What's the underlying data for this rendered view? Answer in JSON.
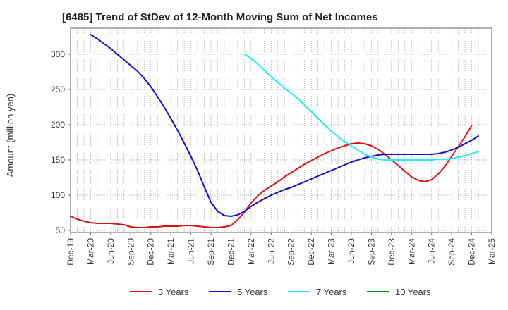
{
  "chart_data": {
    "type": "line",
    "title": "[6485]  Trend of StDev of 12-Month Moving Sum of Net Incomes",
    "ylabel": "Amount (million yen)",
    "xlabel": "",
    "ylim": [
      47,
      337
    ],
    "yticks": [
      50,
      100,
      150,
      200,
      250,
      300
    ],
    "x_ticks": [
      "Dec-19",
      "Mar-20",
      "Jun-20",
      "Sep-20",
      "Dec-20",
      "Mar-21",
      "Jun-21",
      "Sep-21",
      "Dec-21",
      "Mar-22",
      "Jun-22",
      "Sep-22",
      "Dec-22",
      "Mar-23",
      "Jun-23",
      "Sep-23",
      "Dec-23",
      "Mar-24",
      "Jun-24",
      "Sep-24",
      "Dec-24",
      "Mar-25"
    ],
    "grid": true,
    "legend_position": "bottom",
    "series": [
      {
        "name": "3 Years",
        "color": "#dd1111",
        "points": [
          [
            "Dec-19",
            70
          ],
          [
            "Jan-20",
            66
          ],
          [
            "Feb-20",
            63
          ],
          [
            "Mar-20",
            61
          ],
          [
            "Apr-20",
            60
          ],
          [
            "May-20",
            60
          ],
          [
            "Jun-20",
            60
          ],
          [
            "Jul-20",
            59
          ],
          [
            "Aug-20",
            58
          ],
          [
            "Sep-20",
            55
          ],
          [
            "Oct-20",
            54
          ],
          [
            "Nov-20",
            54
          ],
          [
            "Dec-20",
            55
          ],
          [
            "Jan-21",
            55
          ],
          [
            "Feb-21",
            56
          ],
          [
            "Mar-21",
            56
          ],
          [
            "Apr-21",
            56
          ],
          [
            "May-21",
            57
          ],
          [
            "Jun-21",
            57
          ],
          [
            "Jul-21",
            56
          ],
          [
            "Aug-21",
            55
          ],
          [
            "Sep-21",
            54
          ],
          [
            "Oct-21",
            54
          ],
          [
            "Nov-21",
            55
          ],
          [
            "Dec-21",
            57
          ],
          [
            "Jan-22",
            65
          ],
          [
            "Feb-22",
            76
          ],
          [
            "Mar-22",
            89
          ],
          [
            "Apr-22",
            99
          ],
          [
            "May-22",
            107
          ],
          [
            "Jun-22",
            113
          ],
          [
            "Jul-22",
            119
          ],
          [
            "Aug-22",
            126
          ],
          [
            "Sep-22",
            132
          ],
          [
            "Oct-22",
            138
          ],
          [
            "Nov-22",
            144
          ],
          [
            "Dec-22",
            149
          ],
          [
            "Jan-23",
            154
          ],
          [
            "Feb-23",
            159
          ],
          [
            "Mar-23",
            163
          ],
          [
            "Apr-23",
            167
          ],
          [
            "May-23",
            170
          ],
          [
            "Jun-23",
            173
          ],
          [
            "Jul-23",
            174
          ],
          [
            "Aug-23",
            173
          ],
          [
            "Sep-23",
            170
          ],
          [
            "Oct-23",
            165
          ],
          [
            "Nov-23",
            158
          ],
          [
            "Dec-23",
            150
          ],
          [
            "Jan-24",
            142
          ],
          [
            "Feb-24",
            134
          ],
          [
            "Mar-24",
            126
          ],
          [
            "Apr-24",
            121
          ],
          [
            "May-24",
            119
          ],
          [
            "Jun-24",
            122
          ],
          [
            "Jul-24",
            130
          ],
          [
            "Aug-24",
            141
          ],
          [
            "Sep-24",
            155
          ],
          [
            "Oct-24",
            169
          ],
          [
            "Nov-24",
            183
          ],
          [
            "Dec-24",
            199
          ]
        ]
      },
      {
        "name": "5 Years",
        "color": "#1111cc",
        "points": [
          [
            "Mar-20",
            328
          ],
          [
            "Apr-20",
            322
          ],
          [
            "May-20",
            315
          ],
          [
            "Jun-20",
            308
          ],
          [
            "Jul-20",
            300
          ],
          [
            "Aug-20",
            292
          ],
          [
            "Sep-20",
            284
          ],
          [
            "Oct-20",
            276
          ],
          [
            "Nov-20",
            266
          ],
          [
            "Dec-20",
            254
          ],
          [
            "Jan-21",
            240
          ],
          [
            "Feb-21",
            225
          ],
          [
            "Mar-21",
            209
          ],
          [
            "Apr-21",
            192
          ],
          [
            "May-21",
            174
          ],
          [
            "Jun-21",
            155
          ],
          [
            "Jul-21",
            135
          ],
          [
            "Aug-21",
            112
          ],
          [
            "Sep-21",
            90
          ],
          [
            "Oct-21",
            77
          ],
          [
            "Nov-21",
            71
          ],
          [
            "Dec-21",
            70
          ],
          [
            "Jan-22",
            72
          ],
          [
            "Feb-22",
            77
          ],
          [
            "Mar-22",
            84
          ],
          [
            "Apr-22",
            90
          ],
          [
            "May-22",
            95
          ],
          [
            "Jun-22",
            100
          ],
          [
            "Jul-22",
            104
          ],
          [
            "Aug-22",
            108
          ],
          [
            "Sep-22",
            111
          ],
          [
            "Oct-22",
            115
          ],
          [
            "Nov-22",
            119
          ],
          [
            "Dec-22",
            123
          ],
          [
            "Jan-23",
            127
          ],
          [
            "Feb-23",
            131
          ],
          [
            "Mar-23",
            135
          ],
          [
            "Apr-23",
            139
          ],
          [
            "May-23",
            143
          ],
          [
            "Jun-23",
            147
          ],
          [
            "Jul-23",
            150
          ],
          [
            "Aug-23",
            153
          ],
          [
            "Sep-23",
            155
          ],
          [
            "Oct-23",
            157
          ],
          [
            "Nov-23",
            158
          ],
          [
            "Dec-23",
            158
          ],
          [
            "Jan-24",
            158
          ],
          [
            "Feb-24",
            158
          ],
          [
            "Mar-24",
            158
          ],
          [
            "Apr-24",
            158
          ],
          [
            "May-24",
            158
          ],
          [
            "Jun-24",
            158
          ],
          [
            "Jul-24",
            159
          ],
          [
            "Aug-24",
            161
          ],
          [
            "Sep-24",
            164
          ],
          [
            "Oct-24",
            168
          ],
          [
            "Nov-24",
            173
          ],
          [
            "Dec-24",
            178
          ],
          [
            "Jan-25",
            184
          ]
        ]
      },
      {
        "name": "7 Years",
        "color": "#22eeee",
        "points": [
          [
            "Feb-22",
            300
          ],
          [
            "Mar-22",
            294
          ],
          [
            "Apr-22",
            286
          ],
          [
            "May-22",
            277
          ],
          [
            "Jun-22",
            268
          ],
          [
            "Jul-22",
            260
          ],
          [
            "Aug-22",
            252
          ],
          [
            "Sep-22",
            245
          ],
          [
            "Oct-22",
            237
          ],
          [
            "Nov-22",
            228
          ],
          [
            "Dec-22",
            219
          ],
          [
            "Jan-23",
            209
          ],
          [
            "Feb-23",
            200
          ],
          [
            "Mar-23",
            191
          ],
          [
            "Apr-23",
            183
          ],
          [
            "May-23",
            176
          ],
          [
            "Jun-23",
            170
          ],
          [
            "Jul-23",
            164
          ],
          [
            "Aug-23",
            158
          ],
          [
            "Sep-23",
            154
          ],
          [
            "Oct-23",
            151
          ],
          [
            "Nov-23",
            150
          ],
          [
            "Dec-23",
            150
          ],
          [
            "Jan-24",
            150
          ],
          [
            "Feb-24",
            150
          ],
          [
            "Mar-24",
            150
          ],
          [
            "Apr-24",
            150
          ],
          [
            "May-24",
            150
          ],
          [
            "Jun-24",
            150
          ],
          [
            "Jul-24",
            151
          ],
          [
            "Aug-24",
            151
          ],
          [
            "Sep-24",
            152
          ],
          [
            "Oct-24",
            154
          ],
          [
            "Nov-24",
            156
          ],
          [
            "Dec-24",
            159
          ],
          [
            "Jan-25",
            162
          ]
        ]
      },
      {
        "name": "10 Years",
        "color": "#118811",
        "points": []
      }
    ]
  }
}
